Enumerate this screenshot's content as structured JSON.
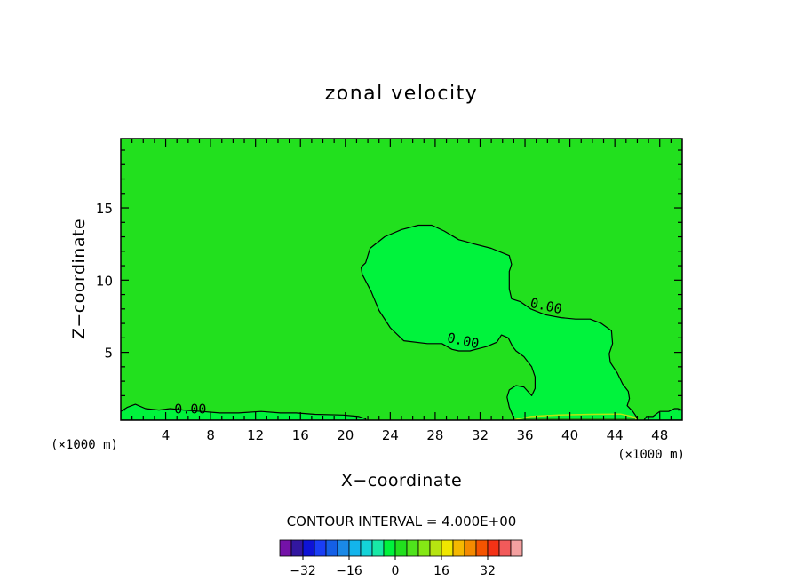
{
  "chart_data": {
    "type": "contour",
    "title": "zonal velocity",
    "xlabel": "X−coordinate",
    "ylabel": "Z−coordinate",
    "x_unit": "(×1000 m)",
    "x_ticks": [
      4,
      8,
      12,
      16,
      20,
      24,
      28,
      32,
      36,
      40,
      44,
      48
    ],
    "x_tick_labels": [
      "4",
      "8",
      "12",
      "16",
      "20",
      "24",
      "28",
      "32",
      "36",
      "40",
      "44",
      "48"
    ],
    "y_ticks": [
      5,
      10,
      15
    ],
    "y_tick_labels": [
      "5",
      "10",
      "15"
    ],
    "xlim": [
      0,
      50
    ],
    "ylim": [
      0.3,
      19.8
    ],
    "background_fill": "#22e01e",
    "contours": [
      {
        "name": "plume",
        "level_label": "0.00",
        "fill": "#00f33c",
        "points": [
          [
            21.8,
            11.2
          ],
          [
            22.2,
            12.2
          ],
          [
            23.5,
            13
          ],
          [
            25,
            13.5
          ],
          [
            26.5,
            13.8
          ],
          [
            27.7,
            13.8
          ],
          [
            28.8,
            13.4
          ],
          [
            30.1,
            12.8
          ],
          [
            30.6,
            12.7
          ],
          [
            31.5,
            12.5
          ],
          [
            33,
            12.2
          ],
          [
            34.6,
            11.7
          ],
          [
            34.8,
            11.1
          ],
          [
            34.6,
            10.6
          ],
          [
            34.6,
            9.4
          ],
          [
            34.8,
            8.7
          ],
          [
            35.6,
            8.5
          ],
          [
            36.5,
            8
          ],
          [
            37.8,
            7.6
          ],
          [
            39.2,
            7.4
          ],
          [
            40.5,
            7.3
          ],
          [
            41.8,
            7.3
          ],
          [
            42.8,
            7
          ],
          [
            43.7,
            6.5
          ],
          [
            43.8,
            5.6
          ],
          [
            43.5,
            4.9
          ],
          [
            43.6,
            4.3
          ],
          [
            44.2,
            3.6
          ],
          [
            44.7,
            2.8
          ],
          [
            45.2,
            2.3
          ],
          [
            45.3,
            1.8
          ],
          [
            45.1,
            1.3
          ],
          [
            45.6,
            0.9
          ],
          [
            46,
            0.45
          ],
          [
            35,
            0.45
          ],
          [
            34.6,
            1.2
          ],
          [
            34.4,
            1.9
          ],
          [
            34.6,
            2.4
          ],
          [
            35.2,
            2.7
          ],
          [
            35.9,
            2.6
          ],
          [
            36.6,
            2
          ],
          [
            36.9,
            2.5
          ],
          [
            36.9,
            3.3
          ],
          [
            36.6,
            4
          ],
          [
            35.9,
            4.7
          ],
          [
            35.2,
            5.1
          ],
          [
            34.9,
            5.4
          ],
          [
            34.5,
            6
          ],
          [
            33.9,
            6.2
          ],
          [
            33.5,
            5.7
          ],
          [
            32.6,
            5.4
          ],
          [
            31.6,
            5.2
          ],
          [
            31.1,
            5.1
          ],
          [
            30.1,
            5.1
          ],
          [
            29.5,
            5.2
          ],
          [
            28.6,
            5.6
          ],
          [
            27.3,
            5.6
          ],
          [
            25.2,
            5.8
          ],
          [
            24,
            6.7
          ],
          [
            23,
            7.9
          ],
          [
            22.3,
            9.2
          ],
          [
            21.5,
            10.4
          ],
          [
            21.4,
            10.9
          ],
          [
            21.8,
            11.2
          ]
        ]
      },
      {
        "name": "ground-band",
        "level_label": "0.00",
        "fill": "#00f33c",
        "points": [
          [
            0,
            0.9
          ],
          [
            0.6,
            1.2
          ],
          [
            1.3,
            1.4
          ],
          [
            2.2,
            1.1
          ],
          [
            3.4,
            1
          ],
          [
            4.4,
            1.1
          ],
          [
            5.6,
            1
          ],
          [
            7.2,
            0.9
          ],
          [
            8.8,
            0.8
          ],
          [
            10.5,
            0.8
          ],
          [
            12.5,
            0.9
          ],
          [
            14.2,
            0.8
          ],
          [
            15.6,
            0.8
          ],
          [
            17.3,
            0.7
          ],
          [
            19.8,
            0.65
          ],
          [
            21.2,
            0.55
          ],
          [
            21.8,
            0.4
          ],
          [
            21.8,
            0.3
          ],
          [
            0,
            0.3
          ]
        ]
      },
      {
        "name": "right-edge-patch",
        "level_label": "",
        "fill": "#00f33c",
        "points": [
          [
            46.6,
            0.3
          ],
          [
            46.8,
            0.55
          ],
          [
            47.4,
            0.55
          ],
          [
            48,
            0.9
          ],
          [
            48.8,
            0.9
          ],
          [
            49.3,
            1.1
          ],
          [
            49.6,
            1.1
          ],
          [
            50,
            1.0
          ],
          [
            50,
            0.3
          ]
        ]
      }
    ],
    "contour_labels": [
      {
        "text": "0.00",
        "x": 37.8,
        "y": 7.9,
        "angle": 12
      },
      {
        "text": "0.00",
        "x": 30.4,
        "y": 5.5,
        "angle": 12
      },
      {
        "text": "0.00",
        "x": 6.2,
        "y": 0.75,
        "angle": 0
      }
    ],
    "colorbar": {
      "caption": "CONTOUR INTERVAL = 4.000E+00",
      "levels": [
        -36,
        -32,
        -28,
        -24,
        -20,
        -16,
        -12,
        -8,
        -4,
        0,
        4,
        8,
        12,
        16,
        20,
        24,
        28,
        32,
        36
      ],
      "colors": [
        "#7412a8",
        "#3217a0",
        "#0e13d6",
        "#1a3ef5",
        "#145fe6",
        "#1a89e7",
        "#13b4ec",
        "#14d3d8",
        "#18e8a6",
        "#00f33c",
        "#22e01e",
        "#4fe31c",
        "#84e815",
        "#b6e411",
        "#f0e600",
        "#f5b800",
        "#f48a00",
        "#f55400",
        "#f43216",
        "#f25a5a",
        "#f4a0a0"
      ],
      "tick_values": [
        -32,
        -16,
        0,
        16,
        32
      ],
      "tick_labels": [
        "−32",
        "−16",
        "0",
        "16",
        "32"
      ]
    }
  }
}
